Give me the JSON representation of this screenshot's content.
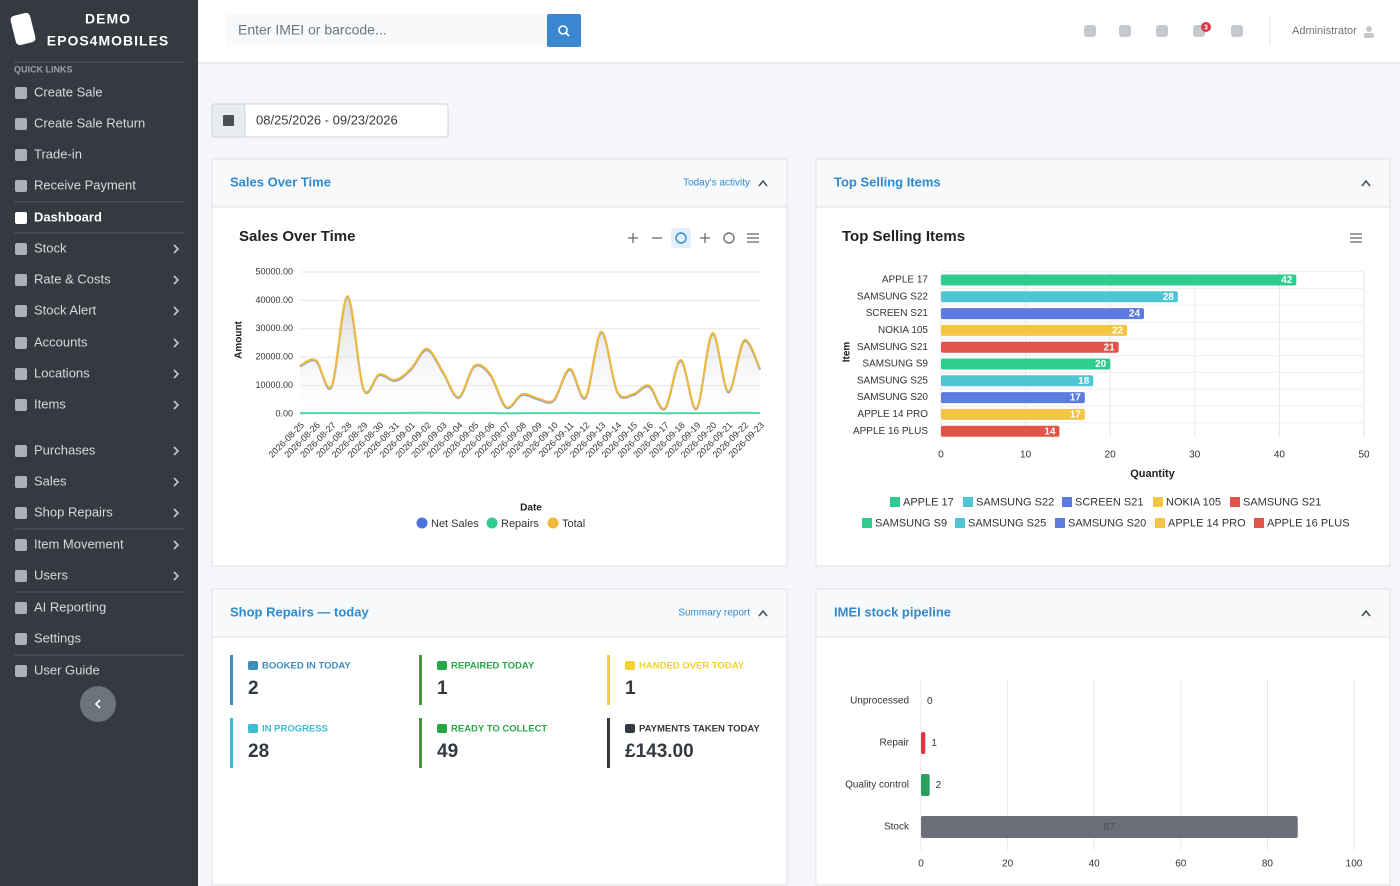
{
  "sidebar": {
    "brand": [
      "DEMO",
      "EPOS4MOBILES"
    ],
    "quick_links": "QUICK LINKS",
    "items": [
      "Create Sale",
      "Create Sale Return",
      "Trade-in",
      "Receive Payment",
      "Dashboard",
      "Stock",
      "Rate & Costs",
      "Stock Alert",
      "Accounts",
      "Locations",
      "Items",
      "Purchases",
      "Sales",
      "Shop Repairs",
      "Item Movement",
      "Users",
      "AI Reporting",
      "Settings",
      "User Guide"
    ]
  },
  "header": {
    "search_placeholder": "Enter IMEI or barcode...",
    "notifications": 3,
    "user": "Administrator"
  },
  "date_range": "08/25/2026 - 09/23/2026",
  "panels": [
    {
      "title": "Sales Over Time",
      "link": "Today's activity"
    },
    {
      "title": "Top Selling Items"
    },
    {
      "title": "Shop Repairs — today",
      "link": "Summary report"
    },
    {
      "title": "IMEI stock pipeline"
    }
  ],
  "repairs": [
    {
      "label": "BOOKED IN TODAY",
      "value": 2,
      "color": "#3c8dbc"
    },
    {
      "label": "REPAIRED TODAY",
      "value": 1,
      "color": "#28a745"
    },
    {
      "label": "HANDED OVER TODAY",
      "value": 1,
      "color": "#f2d22e"
    },
    {
      "label": "IN PROGRESS",
      "value": 28,
      "color": "#3bbcd0"
    },
    {
      "label": "READY TO COLLECT",
      "value": 49,
      "color": "#28a745"
    },
    {
      "label": "PAYMENTS TAKEN TODAY",
      "value": "£143.00",
      "color": "#343a40"
    }
  ],
  "chart_data": [
    {
      "type": "line",
      "title": "Sales Over Time",
      "x_label": "Date",
      "y_label": "Amount",
      "x": [
        "2026-08-25",
        "2026-08-26",
        "2026-08-27",
        "2026-08-28",
        "2026-08-29",
        "2026-08-30",
        "2026-08-31",
        "2026-09-01",
        "2026-09-02",
        "2026-09-03",
        "2026-09-04",
        "2026-09-05",
        "2026-09-06",
        "2026-09-07",
        "2026-09-08",
        "2026-09-09",
        "2026-09-10",
        "2026-09-11",
        "2026-09-12",
        "2026-09-13",
        "2026-09-14",
        "2026-09-15",
        "2026-09-16",
        "2026-09-17",
        "2026-09-18",
        "2026-09-19",
        "2026-09-20",
        "2026-09-21",
        "2026-09-22",
        "2026-09-23"
      ],
      "series": [
        {
          "name": "Net Sales",
          "color": "#4e73df",
          "values": [
            16700,
            18650,
            9600,
            41150,
            8700,
            13680,
            11650,
            15600,
            22550,
            14620,
            5700,
            16650,
            13600,
            2250,
            6700,
            5150,
            4700,
            15600,
            5650,
            28620,
            7700,
            6650,
            9600,
            1720,
            18670,
            1700,
            28150,
            7620,
            25580,
            15650
          ]
        },
        {
          "name": "Repairs",
          "color": "#2ecc8f",
          "values": [
            300,
            350,
            400,
            350,
            300,
            320,
            350,
            400,
            450,
            380,
            300,
            350,
            400,
            250,
            300,
            350,
            300,
            400,
            350,
            380,
            300,
            350,
            400,
            280,
            330,
            300,
            350,
            380,
            420,
            350
          ]
        },
        {
          "name": "Total",
          "color": "#f0b93a",
          "values": [
            17000,
            19000,
            10000,
            41500,
            9000,
            14000,
            12000,
            16000,
            23000,
            15000,
            6000,
            17000,
            14000,
            2500,
            7000,
            5500,
            5000,
            16000,
            6000,
            29000,
            8000,
            7000,
            10000,
            2000,
            19000,
            2000,
            28500,
            8000,
            26000,
            16000
          ]
        }
      ],
      "ylim": [
        0,
        50000
      ],
      "yticks": [
        {
          "value": 0,
          "label": "0.00"
        },
        {
          "value": 10000,
          "label": "10000.00"
        },
        {
          "value": 20000,
          "label": "20000.00"
        },
        {
          "value": 30000,
          "label": "30000.00"
        },
        {
          "value": 40000,
          "label": "40000.00"
        },
        {
          "value": 50000,
          "label": "50000.00"
        }
      ],
      "grid": true,
      "legend": "bottom"
    },
    {
      "type": "bar",
      "orientation": "horizontal",
      "title": "Top Selling Items",
      "x_label": "Quantity",
      "y_label": "Item",
      "categories": [
        "APPLE 17",
        "SAMSUNG S22",
        "SCREEN S21",
        "NOKIA 105",
        "SAMSUNG S21",
        "SAMSUNG S9",
        "SAMSUNG S25",
        "SAMSUNG S20",
        "APPLE 14 PRO",
        "APPLE 16 PLUS"
      ],
      "values": [
        42,
        28,
        24,
        22,
        21,
        20,
        18,
        17,
        17,
        14
      ],
      "colors": [
        "#2ecc8f",
        "#4fc4d3",
        "#5b7be0",
        "#f5c444",
        "#e2534a",
        "#2ecc8f",
        "#4fc4d3",
        "#5b7be0",
        "#f5c444",
        "#e2534a"
      ],
      "xlim": [
        0,
        50
      ],
      "xticks": [
        0,
        10,
        20,
        30,
        40,
        50
      ],
      "grid": true,
      "legend": "bottom"
    },
    {
      "type": "bar",
      "orientation": "horizontal",
      "categories": [
        "Unprocessed",
        "Repair",
        "Quality control",
        "Stock"
      ],
      "values": [
        0,
        1,
        2,
        87
      ],
      "colors": [
        "#5b7be0",
        "#dc3545",
        "#28a060",
        "#6c6e7a"
      ],
      "xlim": [
        0,
        100
      ],
      "xticks": [
        0,
        20,
        40,
        60,
        80,
        100
      ],
      "grid": true
    }
  ]
}
